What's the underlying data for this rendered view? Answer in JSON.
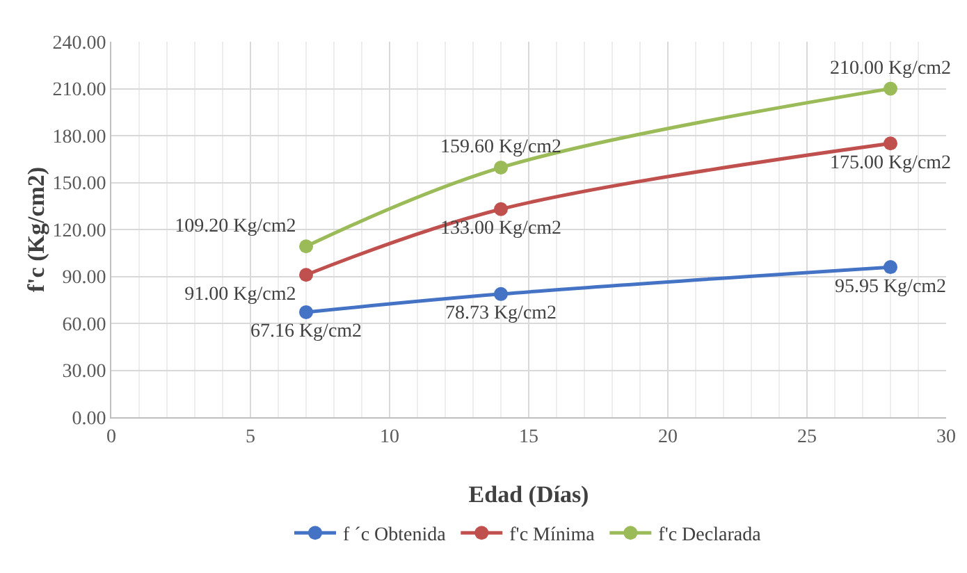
{
  "chart_data": {
    "type": "line",
    "xlabel": "Edad (Días)",
    "ylabel": "f'c (Kg/cm2)",
    "x": [
      7,
      14,
      28
    ],
    "xlim": [
      0,
      30
    ],
    "xticks": [
      0,
      5,
      10,
      15,
      20,
      25,
      30
    ],
    "ylim": [
      0,
      240
    ],
    "yticks": [
      {
        "value": 0,
        "label": "0.00"
      },
      {
        "value": 30,
        "label": "30.00"
      },
      {
        "value": 60,
        "label": "60.00"
      },
      {
        "value": 90,
        "label": "90.00"
      },
      {
        "value": 120,
        "label": "120.00"
      },
      {
        "value": 150,
        "label": "150.00"
      },
      {
        "value": 180,
        "label": "180.00"
      },
      {
        "value": 210,
        "label": "210.00"
      },
      {
        "value": 240,
        "label": "240.00"
      }
    ],
    "series": [
      {
        "name": "f ´c Obtenida",
        "color": "#4472c4",
        "values": [
          67.16,
          78.73,
          95.95
        ],
        "value_labels": [
          "67.16 Kg/cm2",
          "78.73 Kg/cm2",
          "95.95 Kg/cm2"
        ]
      },
      {
        "name": "f'c Mínima",
        "color": "#c0504d",
        "values": [
          91,
          133,
          175
        ],
        "value_labels": [
          "91.00 Kg/cm2",
          "133.00 Kg/cm2",
          "175.00 Kg/cm2"
        ]
      },
      {
        "name": "f'c Declarada",
        "color": "#9bbb59",
        "values": [
          109.2,
          159.6,
          210
        ],
        "value_labels": [
          "109.20 Kg/cm2",
          "159.60 Kg/cm2",
          "210.00 Kg/cm2"
        ]
      }
    ],
    "grid": true,
    "legend": "bottom",
    "marker": "circle",
    "line_style": "solid"
  }
}
